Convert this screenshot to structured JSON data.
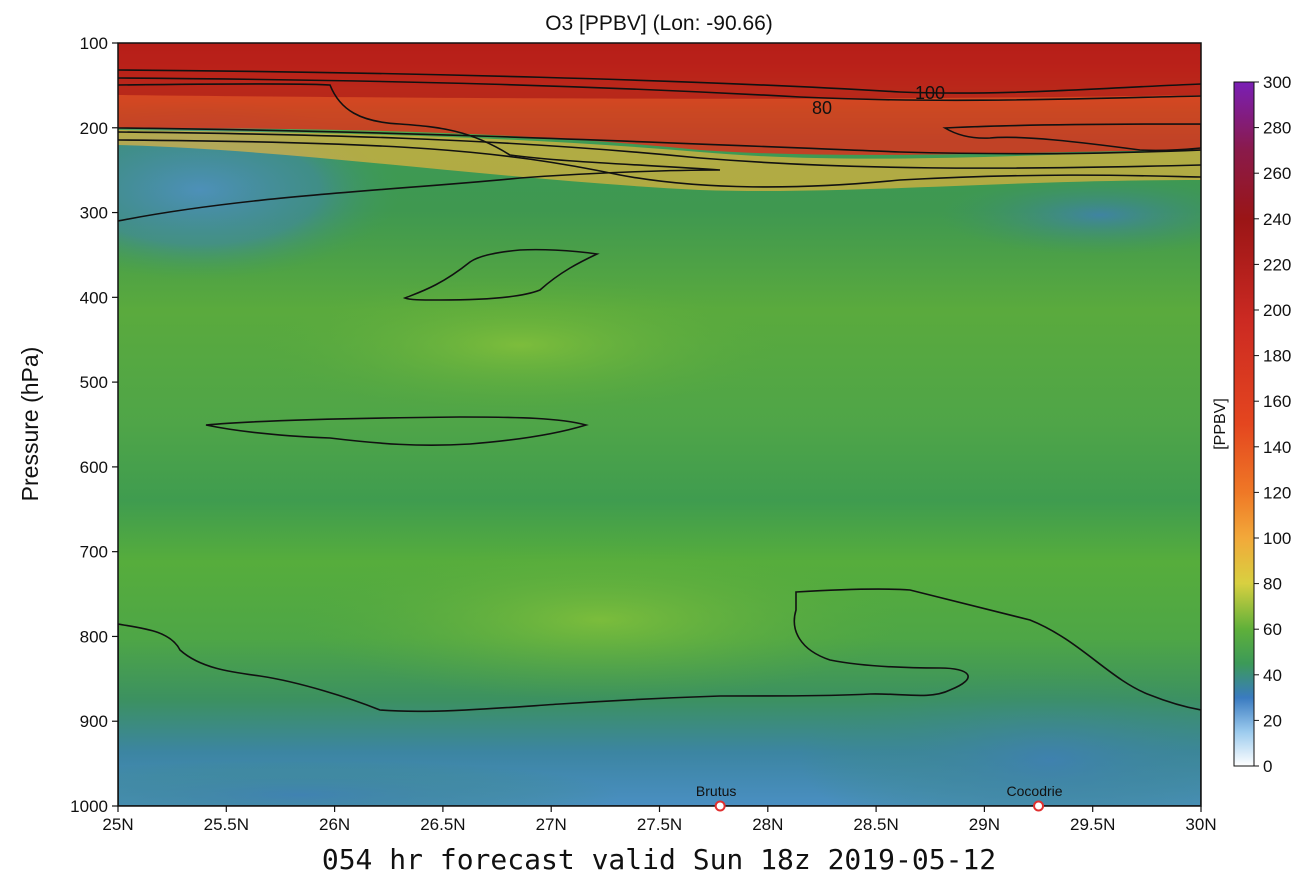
{
  "chart_data": {
    "type": "heatmap",
    "title": "O3 [PPBV] (Lon: -90.66)",
    "xlabel": "054 hr forecast valid Sun 18z 2019-05-12",
    "ylabel": "Pressure (hPa)",
    "x_ticks": [
      "25N",
      "25.5N",
      "26N",
      "26.5N",
      "27N",
      "27.5N",
      "28N",
      "28.5N",
      "29N",
      "29.5N",
      "30N"
    ],
    "x_range": [
      25,
      30
    ],
    "y_ticks": [
      "100",
      "200",
      "300",
      "400",
      "500",
      "600",
      "700",
      "800",
      "900",
      "1000"
    ],
    "y_range": [
      1000,
      100
    ],
    "colorbar": {
      "label": "[PPBV]",
      "range": [
        0,
        300
      ],
      "ticks": [
        "0",
        "20",
        "40",
        "60",
        "80",
        "100",
        "120",
        "140",
        "160",
        "180",
        "200",
        "220",
        "240",
        "260",
        "280",
        "300"
      ]
    },
    "contour_labels": [
      "80",
      "100"
    ],
    "sites": [
      {
        "name": "Brutus",
        "lat": 27.78
      },
      {
        "name": "Cocodrie",
        "lat": 29.25
      }
    ]
  }
}
